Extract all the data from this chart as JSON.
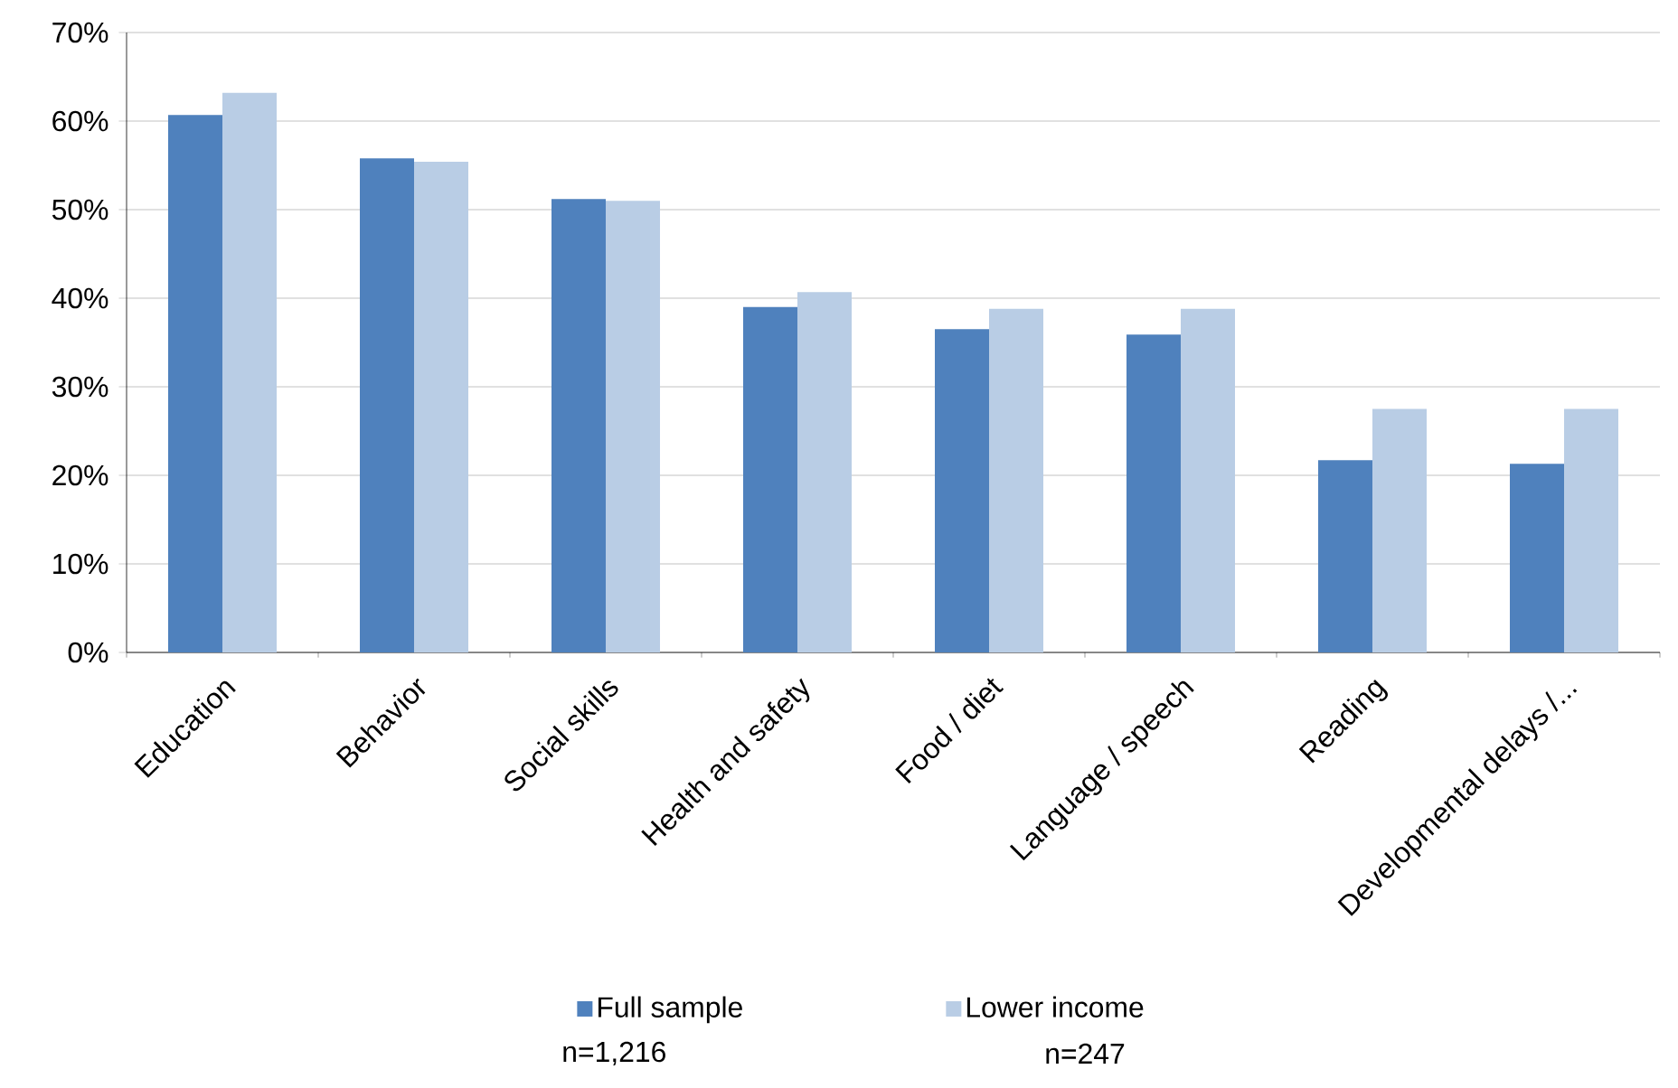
{
  "chart_data": {
    "type": "bar",
    "categories": [
      "Education",
      "Behavior",
      "Social skills",
      "Health and safety",
      "Food / diet",
      "Language / speech",
      "Reading",
      "Developmental delays /..."
    ],
    "series": [
      {
        "name": "Full sample",
        "color": "#4f81bd",
        "values": [
          60.7,
          55.8,
          51.2,
          39.0,
          36.5,
          35.9,
          21.7,
          21.3
        ]
      },
      {
        "name": "Lower income",
        "color": "#b9cde5",
        "values": [
          63.2,
          55.4,
          51.0,
          40.7,
          38.8,
          38.8,
          27.5,
          27.5
        ]
      }
    ],
    "ylim": [
      0,
      70
    ],
    "yticks": [
      {
        "value": 0,
        "label": "0%"
      },
      {
        "value": 10,
        "label": "10%"
      },
      {
        "value": 20,
        "label": "20%"
      },
      {
        "value": 30,
        "label": "30%"
      },
      {
        "value": 40,
        "label": "40%"
      },
      {
        "value": 50,
        "label": "50%"
      },
      {
        "value": 60,
        "label": "60%"
      },
      {
        "value": 70,
        "label": "70%"
      }
    ],
    "grid": "y",
    "legend": "bottom",
    "annotations": [
      "n=1,216",
      "n=247"
    ]
  }
}
